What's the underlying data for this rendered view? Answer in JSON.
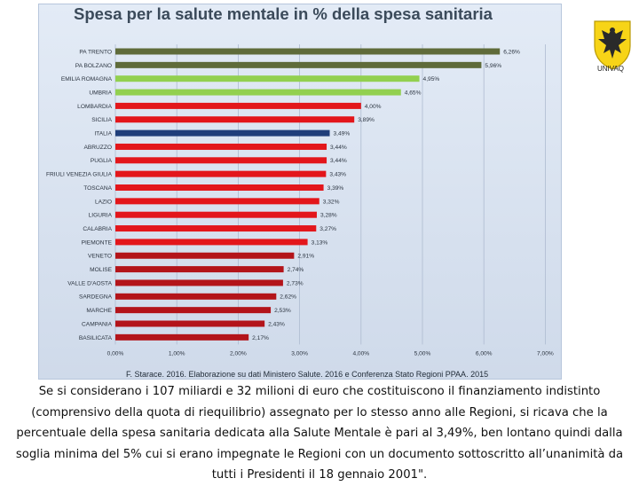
{
  "slide": {
    "logo_text": "UNIVAQ",
    "caption": "Se si considerano i 107 miliardi e 32 milioni di euro che costituiscono il finanziamento indistinto (comprensivo della quota di riequilibrio) assegnato per lo stesso anno alle Regioni, si ricava che la percentuale della spesa sanitaria dedicata alla Salute Mentale è pari al 3,49%, ben lontano quindi dalla soglia minima del 5% cui si erano impegnate le Regioni con un documento sottoscritto all’unanimità da tutti i Presidenti il 18 gennaio 2001\"."
  },
  "chart_data": {
    "type": "bar",
    "orientation": "horizontal",
    "title": "Spesa per la salute mentale in % della spesa sanitaria",
    "source": "F. Starace. 2016. Elaborazione su dati Ministero Salute. 2016 e Conferenza Stato Regioni PPAA. 2015",
    "xlim": [
      0,
      7
    ],
    "x_ticks": [
      "0,00%",
      "1,00%",
      "2,00%",
      "3,00%",
      "4,00%",
      "5,00%",
      "6,00%",
      "7,00%"
    ],
    "grid": true,
    "colors": {
      "olive": "#5f6b3a",
      "green": "#92d050",
      "red": "#e3161b",
      "navy": "#1f3e7a",
      "darkred": "#b3141a"
    },
    "bars": [
      {
        "category": "PA TRENTO",
        "value": 6.26,
        "label": "6,26%",
        "color": "olive"
      },
      {
        "category": "PA BOLZANO",
        "value": 5.96,
        "label": "5,96%",
        "color": "olive"
      },
      {
        "category": "EMILIA ROMAGNA",
        "value": 4.95,
        "label": "4,95%",
        "color": "green"
      },
      {
        "category": "UMBRIA",
        "value": 4.65,
        "label": "4,65%",
        "color": "green"
      },
      {
        "category": "LOMBARDIA",
        "value": 4.0,
        "label": "4,00%",
        "color": "red"
      },
      {
        "category": "SICILIA",
        "value": 3.89,
        "label": "3,89%",
        "color": "red"
      },
      {
        "category": "ITALIA",
        "value": 3.49,
        "label": "3,49%",
        "color": "navy"
      },
      {
        "category": "ABRUZZO",
        "value": 3.44,
        "label": "3,44%",
        "color": "red"
      },
      {
        "category": "PUGLIA",
        "value": 3.44,
        "label": "3,44%",
        "color": "red"
      },
      {
        "category": "FRIULI VENEZIA GIULIA",
        "value": 3.43,
        "label": "3,43%",
        "color": "red"
      },
      {
        "category": "TOSCANA",
        "value": 3.39,
        "label": "3,39%",
        "color": "red"
      },
      {
        "category": "LAZIO",
        "value": 3.32,
        "label": "3,32%",
        "color": "red"
      },
      {
        "category": "LIGURIA",
        "value": 3.28,
        "label": "3,28%",
        "color": "red"
      },
      {
        "category": "CALABRIA",
        "value": 3.27,
        "label": "3,27%",
        "color": "red"
      },
      {
        "category": "PIEMONTE",
        "value": 3.13,
        "label": "3,13%",
        "color": "red"
      },
      {
        "category": "VENETO",
        "value": 2.91,
        "label": "2,91%",
        "color": "darkred"
      },
      {
        "category": "MOLISE",
        "value": 2.74,
        "label": "2,74%",
        "color": "darkred"
      },
      {
        "category": "VALLE D'AOSTA",
        "value": 2.73,
        "label": "2,73%",
        "color": "darkred"
      },
      {
        "category": "SARDEGNA",
        "value": 2.62,
        "label": "2,62%",
        "color": "darkred"
      },
      {
        "category": "MARCHE",
        "value": 2.53,
        "label": "2,53%",
        "color": "darkred"
      },
      {
        "category": "CAMPANIA",
        "value": 2.43,
        "label": "2,43%",
        "color": "darkred"
      },
      {
        "category": "BASILICATA",
        "value": 2.17,
        "label": "2,17%",
        "color": "darkred"
      }
    ]
  }
}
